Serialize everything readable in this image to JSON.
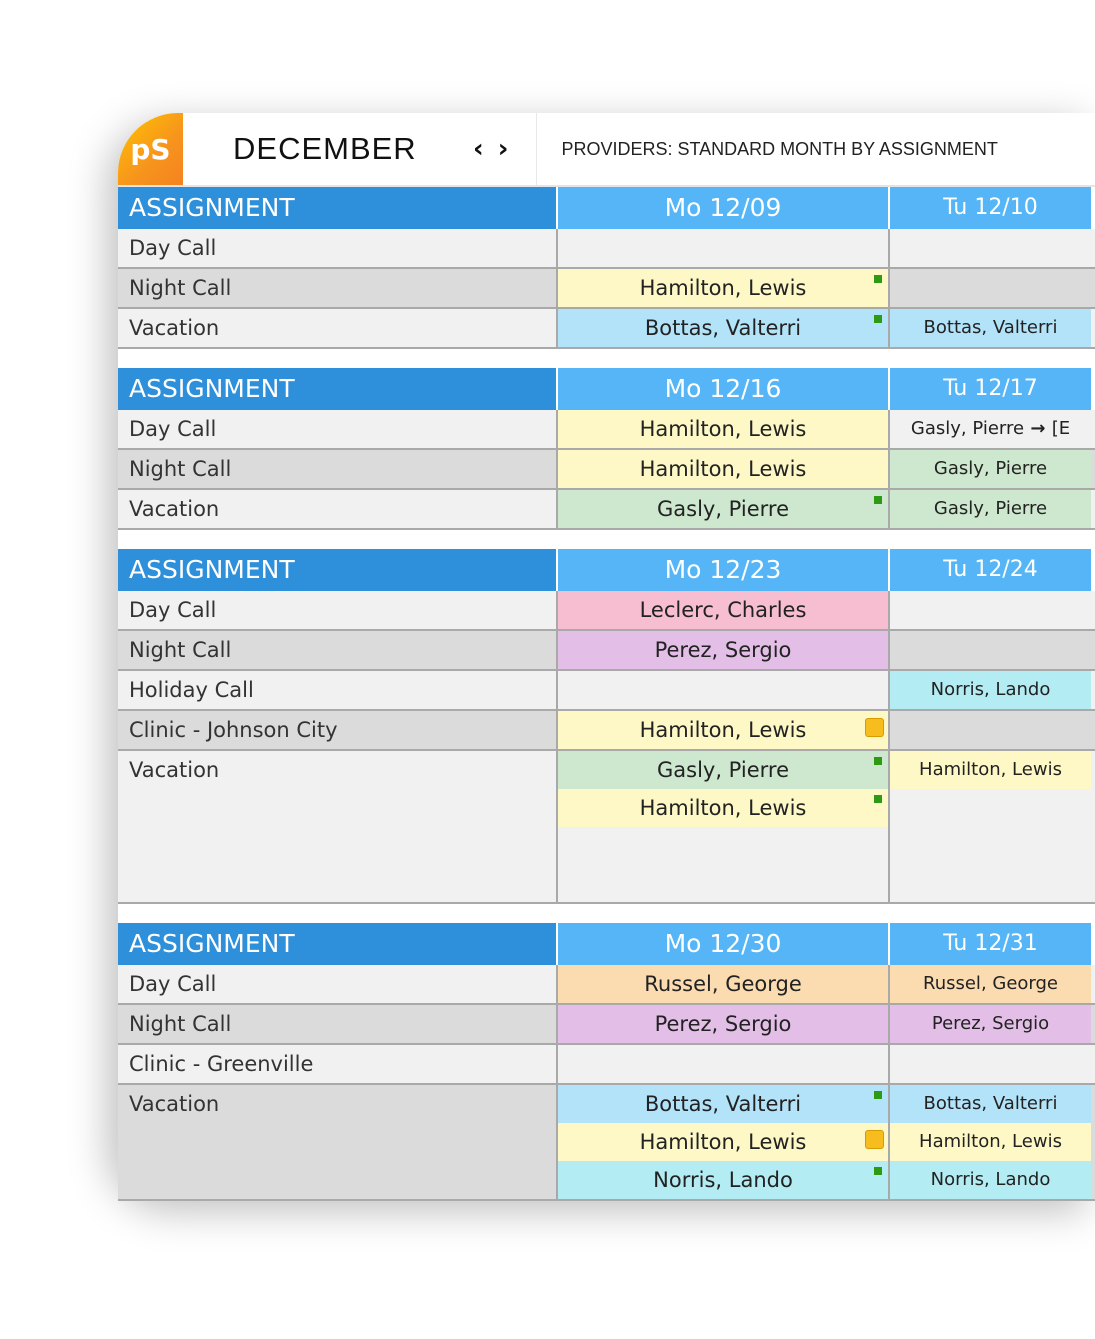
{
  "header": {
    "logo_text": "pS",
    "month": "DECEMBER",
    "prev_icon": "chevron-left-icon",
    "next_icon": "chevron-right-icon",
    "prev_label": "‹",
    "next_label": "›",
    "title": "PROVIDERS: STANDARD MONTH BY ASSIGNMENT"
  },
  "colors": {
    "label_header": "#2e8fda",
    "day_header": "#55b5f6",
    "yellow": "#fdf8c6",
    "blue": "#b3e3f9",
    "green": "#cde8cf",
    "pink": "#f7bdd0",
    "purple": "#e3bfe8",
    "cyan": "#b3ecf2",
    "orange": "#fbdcb0"
  },
  "sections": [
    {
      "header": "ASSIGNMENT",
      "days": [
        "Mo 12/09",
        "Tu 12/10"
      ],
      "rows": [
        {
          "label": "Day Call",
          "cells": [
            [],
            []
          ]
        },
        {
          "label": "Night Call",
          "cells": [
            [
              {
                "name": "Hamilton, Lewis",
                "color": "yellow",
                "marker": "green"
              }
            ],
            []
          ]
        },
        {
          "label": "Vacation",
          "cells": [
            [
              {
                "name": "Bottas, Valterri",
                "color": "blue",
                "marker": "green"
              }
            ],
            [
              {
                "name": "Bottas, Valterri",
                "color": "blue"
              }
            ]
          ]
        }
      ]
    },
    {
      "header": "ASSIGNMENT",
      "days": [
        "Mo 12/16",
        "Tu 12/17"
      ],
      "rows": [
        {
          "label": "Day Call",
          "cells": [
            [
              {
                "name": "Hamilton, Lewis",
                "color": "yellow"
              }
            ],
            [
              {
                "name": "Gasly, Pierre",
                "suffix": "[E",
                "color": "none"
              }
            ]
          ]
        },
        {
          "label": "Night Call",
          "cells": [
            [
              {
                "name": "Hamilton, Lewis",
                "color": "yellow"
              }
            ],
            [
              {
                "name": "Gasly, Pierre",
                "color": "green"
              }
            ]
          ]
        },
        {
          "label": "Vacation",
          "cells": [
            [
              {
                "name": "Gasly, Pierre",
                "color": "green",
                "marker": "green"
              }
            ],
            [
              {
                "name": "Gasly, Pierre",
                "color": "green"
              }
            ]
          ]
        }
      ]
    },
    {
      "header": "ASSIGNMENT",
      "days": [
        "Mo 12/23",
        "Tu 12/24"
      ],
      "rows": [
        {
          "label": "Day Call",
          "cells": [
            [
              {
                "name": "Leclerc, Charles",
                "color": "pink"
              }
            ],
            []
          ]
        },
        {
          "label": "Night Call",
          "cells": [
            [
              {
                "name": "Perez, Sergio",
                "color": "purple"
              }
            ],
            []
          ]
        },
        {
          "label": "Holiday Call",
          "cells": [
            [],
            [
              {
                "name": "Norris, Lando",
                "color": "cyan"
              }
            ]
          ]
        },
        {
          "label": "Clinic - Johnson City",
          "cells": [
            [
              {
                "name": "Hamilton, Lewis",
                "color": "yellow",
                "marker": "note"
              }
            ],
            []
          ]
        },
        {
          "label": "Vacation",
          "tall": true,
          "cells": [
            [
              {
                "name": "Gasly, Pierre",
                "color": "green",
                "marker": "green"
              },
              {
                "name": "Hamilton, Lewis",
                "color": "yellow",
                "marker": "green"
              }
            ],
            [
              {
                "name": "Hamilton, Lewis",
                "color": "yellow"
              }
            ]
          ]
        }
      ]
    },
    {
      "header": "ASSIGNMENT",
      "days": [
        "Mo 12/30",
        "Tu 12/31"
      ],
      "rows": [
        {
          "label": "Day Call",
          "cells": [
            [
              {
                "name": "Russel, George",
                "color": "orange"
              }
            ],
            [
              {
                "name": "Russel, George",
                "color": "orange"
              }
            ]
          ]
        },
        {
          "label": "Night Call",
          "cells": [
            [
              {
                "name": "Perez, Sergio",
                "color": "purple"
              }
            ],
            [
              {
                "name": "Perez, Sergio",
                "color": "purple"
              }
            ]
          ]
        },
        {
          "label": "Clinic - Greenville",
          "cells": [
            [],
            []
          ]
        },
        {
          "label": "Vacation",
          "cells": [
            [
              {
                "name": "Bottas, Valterri",
                "color": "blue",
                "marker": "green"
              },
              {
                "name": "Hamilton, Lewis",
                "color": "yellow",
                "marker": "note"
              },
              {
                "name": "Norris, Lando",
                "color": "cyan",
                "marker": "green"
              }
            ],
            [
              {
                "name": "Bottas, Valterri",
                "color": "blue"
              },
              {
                "name": "Hamilton, Lewis",
                "color": "yellow"
              },
              {
                "name": "Norris, Lando",
                "color": "cyan"
              }
            ]
          ]
        }
      ]
    }
  ]
}
